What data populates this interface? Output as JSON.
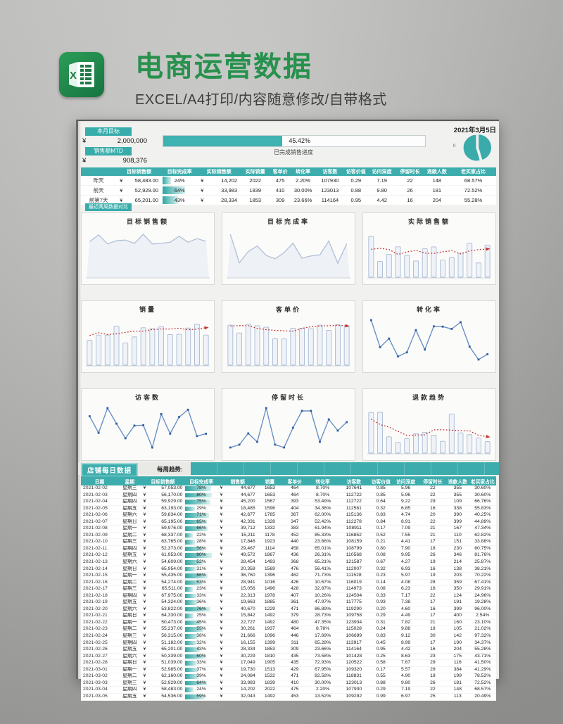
{
  "page": {
    "title": "电商运营数据",
    "subtitle": "EXCEL/A4打印/内容随意修改/自带格式"
  },
  "colors": {
    "accent_teal": "#3cadac",
    "title_green": "#27914d",
    "bar_outline_blue": "#a8bad4",
    "bar_fill_blue": "#eff3f8",
    "line_blue": "#6a90c4",
    "marker_blue": "#2e5fa3",
    "trend_red": "#c23531",
    "area_fill": "#eef1f6",
    "area_line": "#b0c0d8"
  },
  "dashboard": {
    "date": "2021年3月5日",
    "currency": "¥",
    "target_label": "本月目标",
    "target_value": "2,000,000",
    "mtd_label": "销售额MTD",
    "mtd_value": "908,376",
    "progress_pct": "45.42%",
    "progress_value": 45.42,
    "progress_caption": "已完成销售进度",
    "pie_value": 45.42,
    "pie_label": "0"
  },
  "summary": {
    "headers": [
      "目标销售额",
      "目标完成率",
      "实际销售额",
      "实际销量",
      "客单价",
      "转化率",
      "访客数",
      "访客价值",
      "访问深度",
      "停留时长",
      "退款人数",
      "老买家占比"
    ],
    "rows": [
      {
        "label": "昨天",
        "target": "58,483.00",
        "pct": 24,
        "sales": "14,202",
        "qty": "2022",
        "price": "475",
        "conv": "2.20%",
        "visitors": "107930",
        "value": "0.29",
        "depth": "7.19",
        "stay": "22",
        "refund": "148",
        "old": "68.57%"
      },
      {
        "label": "前天",
        "target": "52,929.00",
        "pct": 64,
        "sales": "33,983",
        "qty": "1839",
        "price": "410",
        "conv": "30.00%",
        "visitors": "123013",
        "value": "0.88",
        "depth": "9.80",
        "stay": "26",
        "refund": "181",
        "old": "72.52%"
      },
      {
        "label": "前第7天",
        "target": "65,201.00",
        "pct": 43,
        "sales": "28,334",
        "qty": "1853",
        "price": "309",
        "conv": "23.66%",
        "visitors": "114164",
        "value": "0.95",
        "depth": "4.42",
        "stay": "16",
        "refund": "204",
        "old": "55.28%"
      }
    ]
  },
  "charts_section_label": "最近两周数据对比",
  "charts": [
    {
      "title": "目标销售额",
      "type": "area",
      "values": [
        53822,
        64330,
        50473,
        55237,
        56315,
        51182,
        65201,
        50339,
        51039,
        52985,
        62160,
        52929,
        58483,
        54536
      ]
    },
    {
      "title": "目标完成率",
      "type": "area",
      "values": [
        76,
        25,
        45,
        55,
        38,
        32,
        43,
        60,
        33,
        37,
        39,
        64,
        24,
        59
      ]
    },
    {
      "title": "实际销售额",
      "type": "bar-trend",
      "values": [
        40670,
        15842,
        22727,
        30261,
        21666,
        16155,
        28334,
        30229,
        17049,
        19730,
        24084,
        33983,
        14202,
        32043
      ]
    },
    {
      "title": "销量",
      "type": "bar-trend",
      "values": [
        1229,
        1492,
        1492,
        1937,
        1096,
        1399,
        1853,
        1810,
        1905,
        1513,
        1532,
        1839,
        2022,
        1492
      ]
    },
    {
      "title": "客单价",
      "type": "bar-trend",
      "values": [
        471,
        379,
        480,
        464,
        446,
        311,
        309,
        435,
        435,
        429,
        471,
        410,
        475,
        453
      ]
    },
    {
      "title": "转化率",
      "type": "line",
      "values": [
        86.89,
        28.73,
        47.35,
        8.78,
        17.69,
        65.28,
        23.66,
        73.58,
        72.93,
        67.95,
        82.58,
        30.0,
        2.2,
        13.52
      ]
    },
    {
      "title": "访客数",
      "type": "line",
      "values": [
        119290,
        109758,
        123934,
        115028,
        106699,
        113917,
        114164,
        101428,
        120522,
        109320,
        118831,
        123013,
        107930,
        109292
      ]
    },
    {
      "title": "停留时长",
      "type": "line",
      "values": [
        16,
        17,
        21,
        18,
        30,
        17,
        16,
        23,
        29,
        29,
        18,
        26,
        22,
        25
      ]
    },
    {
      "title": "退款趋势",
      "type": "bar-trend",
      "values": [
        399,
        400,
        160,
        105,
        142,
        190,
        204,
        175,
        116,
        384,
        199,
        181,
        148,
        113
      ]
    }
  ],
  "daily": {
    "section_label": "店铺每日数据",
    "trend_label": "每周趋势:",
    "headers": [
      "日期",
      "星期",
      "目标销售额",
      "目标完成率",
      "销售额",
      "销量",
      "客单价",
      "转化率",
      "访客数",
      "访客价值",
      "访问深度",
      "停留时长",
      "退款人数",
      "老买家占比"
    ],
    "rows": [
      [
        "2021-02-02",
        "星期三",
        "57,053.00",
        78,
        "44,677",
        "1653",
        "464",
        "8.70%",
        "107641",
        "0.85",
        "5.96",
        "22",
        "355",
        "30.60%"
      ],
      [
        "2021-02-03",
        "星期四",
        "56,170.00",
        80,
        "44,677",
        "1653",
        "464",
        "8.70%",
        "112722",
        "0.85",
        "5.96",
        "22",
        "355",
        "30.60%"
      ],
      [
        "2021-02-04",
        "星期四",
        "59,929.00",
        75,
        "45,200",
        "1567",
        "393",
        "53.49%",
        "112722",
        "0.64",
        "9.22",
        "29",
        "109",
        "66.76%"
      ],
      [
        "2021-02-05",
        "星期五",
        "63,193.00",
        29,
        "18,485",
        "1596",
        "404",
        "34.36%",
        "112581",
        "0.32",
        "6.85",
        "16",
        "338",
        "55.83%"
      ],
      [
        "2021-02-06",
        "星期六",
        "59,834.00",
        71,
        "42,677",
        "1785",
        "367",
        "62.00%",
        "115136",
        "0.83",
        "4.74",
        "20",
        "390",
        "40.25%"
      ],
      [
        "2021-02-07",
        "星期日",
        "65,195.00",
        65,
        "42,331",
        "1328",
        "347",
        "52.42%",
        "112278",
        "0.84",
        "8.91",
        "22",
        "399",
        "44.89%"
      ],
      [
        "2021-02-08",
        "星期一",
        "59,976.00",
        66,
        "39,712",
        "1332",
        "383",
        "61.94%",
        "108911",
        "0.17",
        "7.09",
        "21",
        "167",
        "47.34%"
      ],
      [
        "2021-02-09",
        "星期二",
        "68,337.00",
        22,
        "15,211",
        "1178",
        "452",
        "85.33%",
        "116852",
        "0.52",
        "7.55",
        "21",
        "110",
        "62.82%"
      ],
      [
        "2021-02-10",
        "星期三",
        "63,765.00",
        28,
        "17,846",
        "1923",
        "440",
        "23.66%",
        "108159",
        "0.21",
        "4.41",
        "17",
        "151",
        "33.88%"
      ],
      [
        "2021-02-11",
        "星期四",
        "52,373.00",
        56,
        "29,467",
        "1114",
        "458",
        "65.01%",
        "108799",
        "0.80",
        "7.90",
        "18",
        "230",
        "60.75%"
      ],
      [
        "2021-02-12",
        "星期五",
        "61,953.00",
        80,
        "49,572",
        "1867",
        "436",
        "26.31%",
        "110568",
        "0.08",
        "9.95",
        "26",
        "346",
        "81.76%"
      ],
      [
        "2021-02-13",
        "星期六",
        "54,609.00",
        52,
        "28,454",
        "1493",
        "368",
        "65.21%",
        "121587",
        "0.67",
        "4.27",
        "19",
        "214",
        "25.87%"
      ],
      [
        "2021-02-14",
        "星期日",
        "65,954.00",
        31,
        "20,359",
        "1569",
        "476",
        "56.41%",
        "112007",
        "0.32",
        "6.93",
        "16",
        "138",
        "38.21%"
      ],
      [
        "2021-02-15",
        "星期一",
        "55,435.00",
        66,
        "36,760",
        "1396",
        "462",
        "71.73%",
        "111528",
        "0.23",
        "5.97",
        "19",
        "203",
        "70.22%"
      ],
      [
        "2021-02-16",
        "星期二",
        "54,274.00",
        53,
        "28,941",
        "1016",
        "426",
        "10.67%",
        "116019",
        "0.14",
        "4.08",
        "28",
        "359",
        "67.41%"
      ],
      [
        "2021-02-17",
        "星期三",
        "65,511.00",
        23,
        "15,056",
        "1496",
        "428",
        "32.87%",
        "114973",
        "0.08",
        "6.23",
        "16",
        "350",
        "29.91%"
      ],
      [
        "2021-02-18",
        "星期四",
        "67,975.00",
        33,
        "22,313",
        "1978",
        "407",
        "10.26%",
        "124504",
        "0.33",
        "7.17",
        "22",
        "124",
        "24.96%"
      ],
      [
        "2021-02-19",
        "星期五",
        "54,324.00",
        36,
        "19,663",
        "1885",
        "361",
        "47.97%",
        "117775",
        "0.93",
        "7.38",
        "17",
        "191",
        "19.28%"
      ],
      [
        "2021-02-20",
        "星期六",
        "53,822.00",
        76,
        "40,670",
        "1229",
        "471",
        "86.89%",
        "119290",
        "0.20",
        "4.60",
        "16",
        "399",
        "96.00%"
      ],
      [
        "2021-02-21",
        "星期日",
        "64,330.00",
        25,
        "15,842",
        "1492",
        "379",
        "28.73%",
        "109758",
        "0.29",
        "4.49",
        "17",
        "400",
        "2.54%"
      ],
      [
        "2021-02-22",
        "星期一",
        "50,473.00",
        45,
        "22,727",
        "1492",
        "480",
        "47.35%",
        "123934",
        "0.31",
        "7.82",
        "21",
        "160",
        "23.10%"
      ],
      [
        "2021-02-23",
        "星期二",
        "55,237.00",
        55,
        "30,261",
        "1937",
        "464",
        "8.78%",
        "115028",
        "0.24",
        "9.88",
        "18",
        "105",
        "21.02%"
      ],
      [
        "2021-02-24",
        "星期三",
        "56,315.00",
        38,
        "21,666",
        "1096",
        "446",
        "17.69%",
        "106699",
        "0.83",
        "9.12",
        "30",
        "142",
        "97.32%"
      ],
      [
        "2021-02-25",
        "星期四",
        "51,182.00",
        32,
        "16,155",
        "1399",
        "311",
        "65.28%",
        "113917",
        "0.45",
        "8.99",
        "17",
        "190",
        "34.37%"
      ],
      [
        "2021-02-26",
        "星期五",
        "65,201.00",
        43,
        "28,334",
        "1853",
        "309",
        "23.66%",
        "114164",
        "0.95",
        "4.42",
        "16",
        "204",
        "55.28%"
      ],
      [
        "2021-02-27",
        "星期六",
        "50,339.00",
        60,
        "30,229",
        "1810",
        "435",
        "73.58%",
        "101428",
        "0.25",
        "8.63",
        "23",
        "175",
        "43.71%"
      ],
      [
        "2021-02-28",
        "星期日",
        "51,039.00",
        33,
        "17,049",
        "1905",
        "435",
        "72.93%",
        "120522",
        "0.58",
        "7.67",
        "29",
        "116",
        "41.50%"
      ],
      [
        "2021-03-01",
        "星期一",
        "52,985.00",
        37,
        "19,730",
        "1513",
        "429",
        "67.95%",
        "109320",
        "0.17",
        "5.57",
        "29",
        "384",
        "41.29%"
      ],
      [
        "2021-03-02",
        "星期二",
        "62,160.00",
        39,
        "24,084",
        "1532",
        "471",
        "82.58%",
        "118831",
        "0.55",
        "4.90",
        "18",
        "199",
        "78.52%"
      ],
      [
        "2021-03-03",
        "星期三",
        "52,929.00",
        64,
        "33,983",
        "1839",
        "410",
        "30.00%",
        "123013",
        "0.88",
        "9.80",
        "26",
        "181",
        "72.52%"
      ],
      [
        "2021-03-04",
        "星期四",
        "58,483.00",
        24,
        "14,202",
        "2022",
        "475",
        "2.20%",
        "107930",
        "0.29",
        "7.19",
        "22",
        "148",
        "68.57%"
      ],
      [
        "2021-03-05",
        "星期五",
        "54,536.00",
        59,
        "32,043",
        "1492",
        "453",
        "13.52%",
        "109292",
        "0.99",
        "6.97",
        "25",
        "113",
        "20.49%"
      ]
    ]
  }
}
